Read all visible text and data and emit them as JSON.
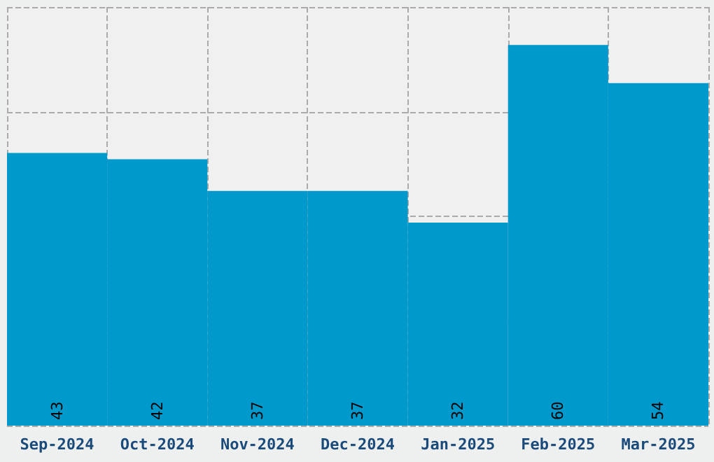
{
  "chart_data": {
    "type": "bar",
    "categories": [
      "Sep-2024",
      "Oct-2024",
      "Nov-2024",
      "Dec-2024",
      "Jan-2025",
      "Feb-2025",
      "Mar-2025"
    ],
    "values": [
      43,
      42,
      37,
      37,
      32,
      60,
      54
    ],
    "color": "#0099cc",
    "ylim": [
      0,
      66
    ],
    "yticks": [
      {
        "value": 0,
        "label": null
      },
      {
        "value": 16.5,
        "label": null
      },
      {
        "value": 33,
        "label": null
      },
      {
        "value": 49.5,
        "label": null
      },
      {
        "value": 66,
        "label": null
      }
    ],
    "grid": true,
    "data_labels": true,
    "tick_labels": "x"
  }
}
